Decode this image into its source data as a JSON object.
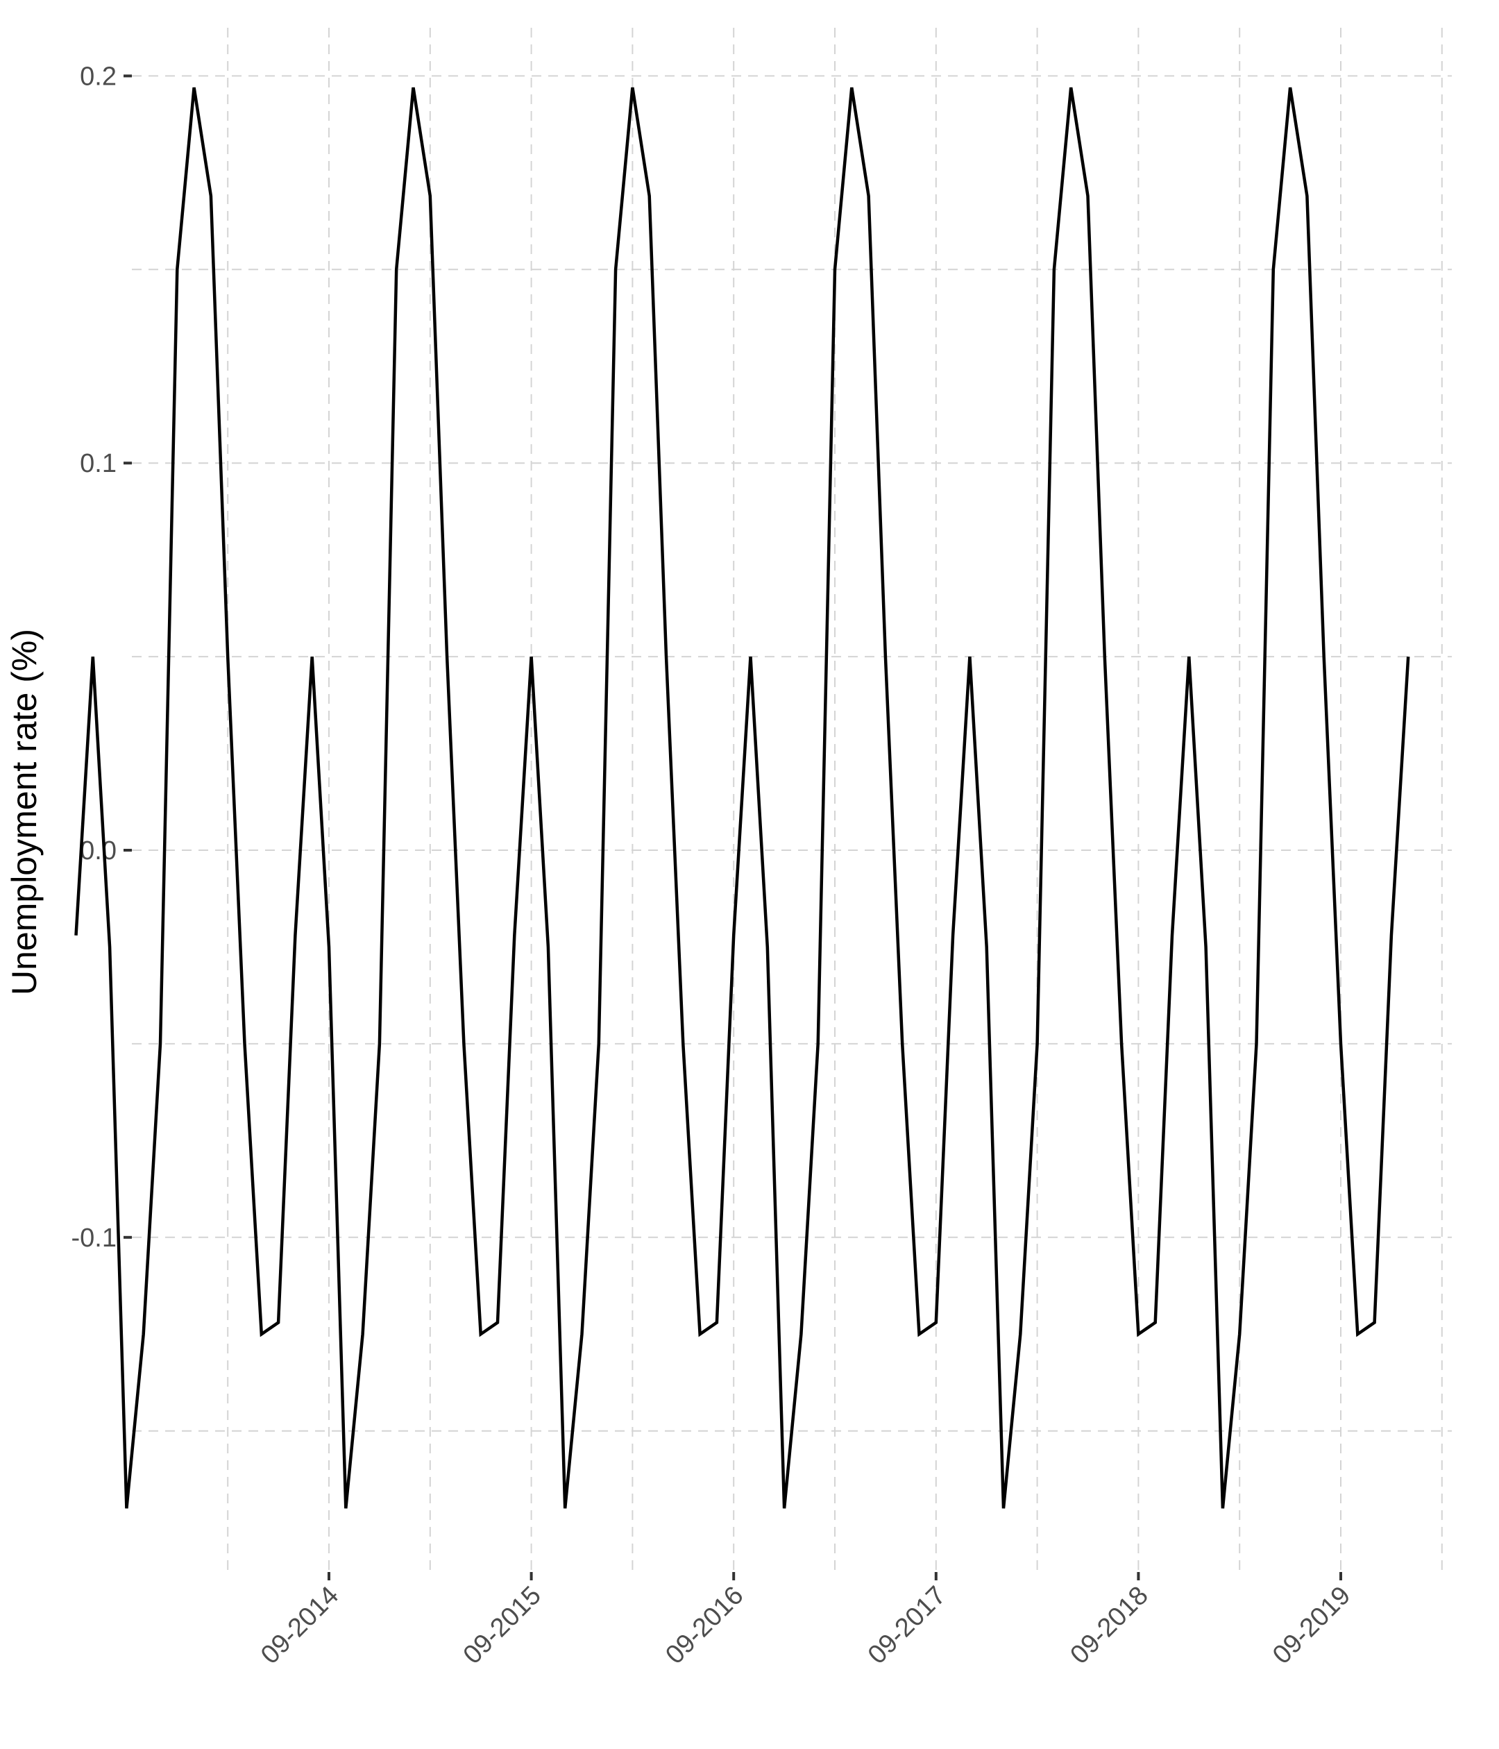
{
  "chart_data": {
    "type": "line",
    "title": "",
    "xlabel": "",
    "ylabel": "Unemployment rate (%)",
    "x_ticks": [
      "09-2014",
      "09-2015",
      "09-2016",
      "09-2017",
      "09-2018",
      "09-2019"
    ],
    "y_ticks": [
      "0.2",
      "0.1",
      "0.0",
      "-0.1"
    ],
    "y_tick_values": [
      0.2,
      0.1,
      0.0,
      -0.1
    ],
    "ylim": [
      -0.172,
      0.205
    ],
    "xlim": [
      "2013-02",
      "2020-04"
    ],
    "grid": "dashed major and minor",
    "legend": "none",
    "colors": {
      "line": "#000000",
      "grid": "#d4d4d4"
    },
    "series": [
      {
        "x": [
          "2013-06",
          "2013-07",
          "2013-08",
          "2013-09",
          "2013-10",
          "2013-11",
          "2013-12",
          "2014-01",
          "2014-02",
          "2014-03",
          "2014-04",
          "2014-05",
          "2014-06",
          "2014-07",
          "2014-08",
          "2014-09",
          "2014-10",
          "2014-11",
          "2014-12",
          "2015-01",
          "2015-02",
          "2015-03",
          "2015-04",
          "2015-05",
          "2015-06",
          "2015-07",
          "2015-08",
          "2015-09",
          "2015-10",
          "2015-11",
          "2015-12",
          "2016-01",
          "2016-02",
          "2016-03",
          "2016-04",
          "2016-05",
          "2016-06",
          "2016-07",
          "2016-08",
          "2016-09",
          "2016-10",
          "2016-11",
          "2016-12",
          "2017-01",
          "2017-02",
          "2017-03",
          "2017-04",
          "2017-05",
          "2017-06",
          "2017-07",
          "2017-08",
          "2017-09",
          "2017-10",
          "2017-11",
          "2017-12",
          "2018-01",
          "2018-02",
          "2018-03",
          "2018-04",
          "2018-05",
          "2018-06",
          "2018-07",
          "2018-08",
          "2018-09",
          "2018-10",
          "2018-11",
          "2018-12",
          "2019-01",
          "2019-02",
          "2019-03",
          "2019-04",
          "2019-05",
          "2019-06",
          "2019-07",
          "2019-08",
          "2019-09",
          "2019-10",
          "2019-11",
          "2019-12",
          "2020-01"
        ],
        "values": [
          -0.022,
          0.05,
          -0.025,
          -0.17,
          -0.125,
          -0.05,
          0.15,
          0.197,
          0.169,
          0.05,
          -0.05,
          -0.125,
          -0.122,
          -0.022,
          0.05,
          -0.025,
          -0.17,
          -0.125,
          -0.05,
          0.15,
          0.197,
          0.169,
          0.05,
          -0.05,
          -0.125,
          -0.122,
          -0.022,
          0.05,
          -0.025,
          -0.17,
          -0.125,
          -0.05,
          0.15,
          0.197,
          0.169,
          0.05,
          -0.05,
          -0.125,
          -0.122,
          -0.022,
          0.05,
          -0.025,
          -0.17,
          -0.125,
          -0.05,
          0.15,
          0.197,
          0.169,
          0.05,
          -0.05,
          -0.125,
          -0.122,
          -0.022,
          0.05,
          -0.025,
          -0.17,
          -0.125,
          -0.05,
          0.15,
          0.197,
          0.169,
          0.05,
          -0.05,
          -0.125,
          -0.122,
          -0.022,
          0.05,
          -0.025,
          -0.17,
          -0.125,
          -0.05,
          0.15,
          0.197,
          0.169,
          0.05,
          -0.05,
          -0.125,
          -0.122,
          -0.022,
          0.05
        ]
      }
    ]
  }
}
